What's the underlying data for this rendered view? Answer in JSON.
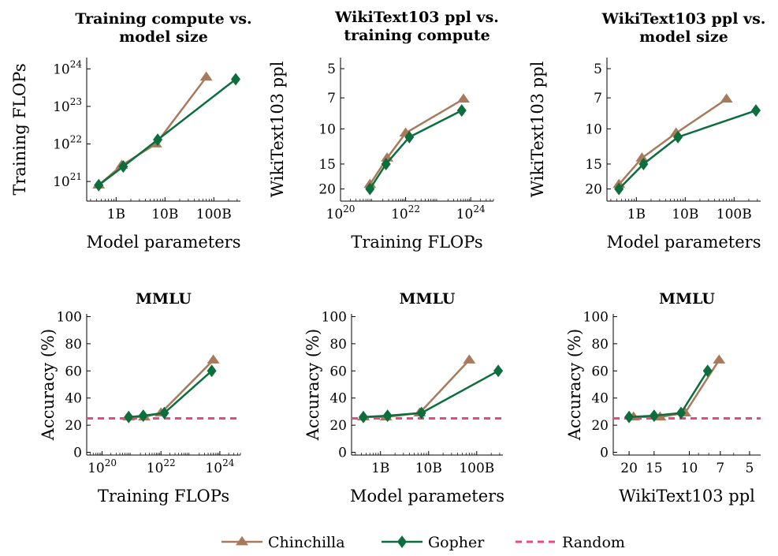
{
  "colors": {
    "chinchilla": "#A87A5C",
    "gopher": "#0B6E3C",
    "random": "#E8497E"
  },
  "legend": [
    {
      "name": "Chinchilla",
      "marker": "triangle",
      "color": "#A87A5C",
      "style": "solid"
    },
    {
      "name": "Gopher",
      "marker": "diamond",
      "color": "#0B6E3C",
      "style": "solid"
    },
    {
      "name": "Random",
      "marker": "none",
      "color": "#E8497E",
      "style": "dashed"
    }
  ],
  "chart_data": [
    {
      "type": "line",
      "title": [
        "Training compute vs.",
        "model size"
      ],
      "xlabel": "Model parameters",
      "ylabel": "Training FLOPs",
      "xscale": "log",
      "yscale": "log",
      "xlim": [
        250000000.0,
        350000000000.0
      ],
      "ylim": [
        3e+20,
        2e+24
      ],
      "xticks": [
        {
          "v": 1000000000.0,
          "label": "1B"
        },
        {
          "v": 10000000000.0,
          "label": "10B"
        },
        {
          "v": 100000000000.0,
          "label": "100B"
        }
      ],
      "yticks": [
        {
          "v": 1e+21,
          "label": "10",
          "sup": "21"
        },
        {
          "v": 1e+22,
          "label": "10",
          "sup": "22"
        },
        {
          "v": 1e+23,
          "label": "10",
          "sup": "23"
        },
        {
          "v": 1e+24,
          "label": "10",
          "sup": "24"
        }
      ],
      "series": [
        {
          "name": "Chinchilla",
          "x": [
            440000000.0,
            1300000000.0,
            6500000000.0,
            70000000000.0
          ],
          "y": [
            8e+20,
            2.7e+21,
            1e+22,
            6e+23
          ]
        },
        {
          "name": "Gopher",
          "x": [
            440000000.0,
            1400000000.0,
            7100000000.0,
            280000000000.0
          ],
          "y": [
            8e+20,
            2.5e+21,
            1.3e+22,
            5.3e+23
          ]
        }
      ]
    },
    {
      "type": "line",
      "title": [
        "WikiText103 ppl vs.",
        "training compute"
      ],
      "xlabel": "Training FLOPs",
      "ylabel": "WikiText103 ppl",
      "xscale": "log",
      "yscale": "log",
      "yreverse": true,
      "xlim": [
        1e+20,
        5e+24
      ],
      "ylim": [
        4.4,
        23
      ],
      "xticks": [
        {
          "v": 1e+20,
          "label": "10",
          "sup": "20"
        },
        {
          "v": 1e+22,
          "label": "10",
          "sup": "22"
        },
        {
          "v": 1e+24,
          "label": "10",
          "sup": "24"
        }
      ],
      "yticks": [
        {
          "v": 5,
          "label": "5"
        },
        {
          "v": 7,
          "label": "7"
        },
        {
          "v": 10,
          "label": "10"
        },
        {
          "v": 15,
          "label": "15"
        },
        {
          "v": 20,
          "label": "20"
        }
      ],
      "series": [
        {
          "name": "Chinchilla",
          "x": [
            8e+20,
            2.7e+21,
            1e+22,
            6e+23
          ],
          "y": [
            19,
            14.0,
            10.5,
            7.1
          ]
        },
        {
          "name": "Gopher",
          "x": [
            8e+20,
            2.5e+21,
            1.3e+22,
            5.3e+23
          ],
          "y": [
            20,
            15.0,
            11.0,
            8.1
          ]
        }
      ]
    },
    {
      "type": "line",
      "title": [
        "WikiText103 ppl vs.",
        "model size"
      ],
      "xlabel": "Model parameters",
      "ylabel": "WikiText103 ppl",
      "xscale": "log",
      "yscale": "log",
      "yreverse": true,
      "xlim": [
        250000000.0,
        350000000000.0
      ],
      "ylim": [
        4.4,
        23
      ],
      "xticks": [
        {
          "v": 1000000000.0,
          "label": "1B"
        },
        {
          "v": 10000000000.0,
          "label": "10B"
        },
        {
          "v": 100000000000.0,
          "label": "100B"
        }
      ],
      "yticks": [
        {
          "v": 5,
          "label": "5"
        },
        {
          "v": 7,
          "label": "7"
        },
        {
          "v": 10,
          "label": "10"
        },
        {
          "v": 15,
          "label": "15"
        },
        {
          "v": 20,
          "label": "20"
        }
      ],
      "series": [
        {
          "name": "Chinchilla",
          "x": [
            440000000.0,
            1300000000.0,
            6500000000.0,
            70000000000.0
          ],
          "y": [
            19,
            14.0,
            10.5,
            7.1
          ]
        },
        {
          "name": "Gopher",
          "x": [
            440000000.0,
            1400000000.0,
            7100000000.0,
            280000000000.0
          ],
          "y": [
            20,
            15.0,
            11.0,
            8.1
          ]
        }
      ]
    },
    {
      "type": "line",
      "title": [
        "MMLU"
      ],
      "xlabel": "Training FLOPs",
      "ylabel": "Accuracy (%)",
      "xscale": "log",
      "yscale": "linear",
      "xlim": [
        3e+19,
        5e+24
      ],
      "ylim": [
        -2,
        102
      ],
      "xticks": [
        {
          "v": 1e+20,
          "label": "10",
          "sup": "20"
        },
        {
          "v": 1e+22,
          "label": "10",
          "sup": "22"
        },
        {
          "v": 1e+24,
          "label": "10",
          "sup": "24"
        }
      ],
      "yticks": [
        {
          "v": 0,
          "label": "0"
        },
        {
          "v": 20,
          "label": "20"
        },
        {
          "v": 40,
          "label": "40"
        },
        {
          "v": 60,
          "label": "60"
        },
        {
          "v": 80,
          "label": "80"
        },
        {
          "v": 100,
          "label": "100"
        }
      ],
      "random_baseline": 25,
      "series": [
        {
          "name": "Chinchilla",
          "x": [
            8e+20,
            2.7e+21,
            1e+22,
            6e+23
          ],
          "y": [
            26,
            26,
            29,
            68
          ]
        },
        {
          "name": "Gopher",
          "x": [
            8e+20,
            2.5e+21,
            1.3e+22,
            5.3e+23
          ],
          "y": [
            26,
            27,
            29,
            60
          ]
        }
      ]
    },
    {
      "type": "line",
      "title": [
        "MMLU"
      ],
      "xlabel": "Model parameters",
      "ylabel": "Accuracy (%)",
      "xscale": "log",
      "yscale": "linear",
      "xlim": [
        250000000.0,
        350000000000.0
      ],
      "ylim": [
        -2,
        102
      ],
      "xticks": [
        {
          "v": 1000000000.0,
          "label": "1B"
        },
        {
          "v": 10000000000.0,
          "label": "10B"
        },
        {
          "v": 100000000000.0,
          "label": "100B"
        }
      ],
      "yticks": [
        {
          "v": 0,
          "label": "0"
        },
        {
          "v": 20,
          "label": "20"
        },
        {
          "v": 40,
          "label": "40"
        },
        {
          "v": 60,
          "label": "60"
        },
        {
          "v": 80,
          "label": "80"
        },
        {
          "v": 100,
          "label": "100"
        }
      ],
      "random_baseline": 25,
      "series": [
        {
          "name": "Chinchilla",
          "x": [
            440000000.0,
            1300000000.0,
            6500000000.0,
            70000000000.0
          ],
          "y": [
            26,
            26,
            29,
            68
          ]
        },
        {
          "name": "Gopher",
          "x": [
            440000000.0,
            1400000000.0,
            7100000000.0,
            280000000000.0
          ],
          "y": [
            26,
            27,
            29,
            60
          ]
        }
      ]
    },
    {
      "type": "line",
      "title": [
        "MMLU"
      ],
      "xlabel": "WikiText103 ppl",
      "ylabel": "Accuracy (%)",
      "xscale": "log",
      "xreverse": true,
      "yscale": "linear",
      "xlim": [
        24,
        4.4
      ],
      "ylim": [
        -2,
        102
      ],
      "xticks": [
        {
          "v": 20,
          "label": "20"
        },
        {
          "v": 15,
          "label": "15"
        },
        {
          "v": 10,
          "label": "10"
        },
        {
          "v": 7,
          "label": "7"
        },
        {
          "v": 5,
          "label": "5"
        }
      ],
      "yticks": [
        {
          "v": 0,
          "label": "0"
        },
        {
          "v": 20,
          "label": "20"
        },
        {
          "v": 40,
          "label": "40"
        },
        {
          "v": 60,
          "label": "60"
        },
        {
          "v": 80,
          "label": "80"
        },
        {
          "v": 100,
          "label": "100"
        }
      ],
      "random_baseline": 25,
      "series": [
        {
          "name": "Chinchilla",
          "x": [
            19,
            14.0,
            10.5,
            7.1
          ],
          "y": [
            26,
            26,
            29,
            68
          ]
        },
        {
          "name": "Gopher",
          "x": [
            20,
            15.0,
            11.0,
            8.1
          ],
          "y": [
            26,
            27,
            29,
            60
          ]
        }
      ]
    }
  ]
}
